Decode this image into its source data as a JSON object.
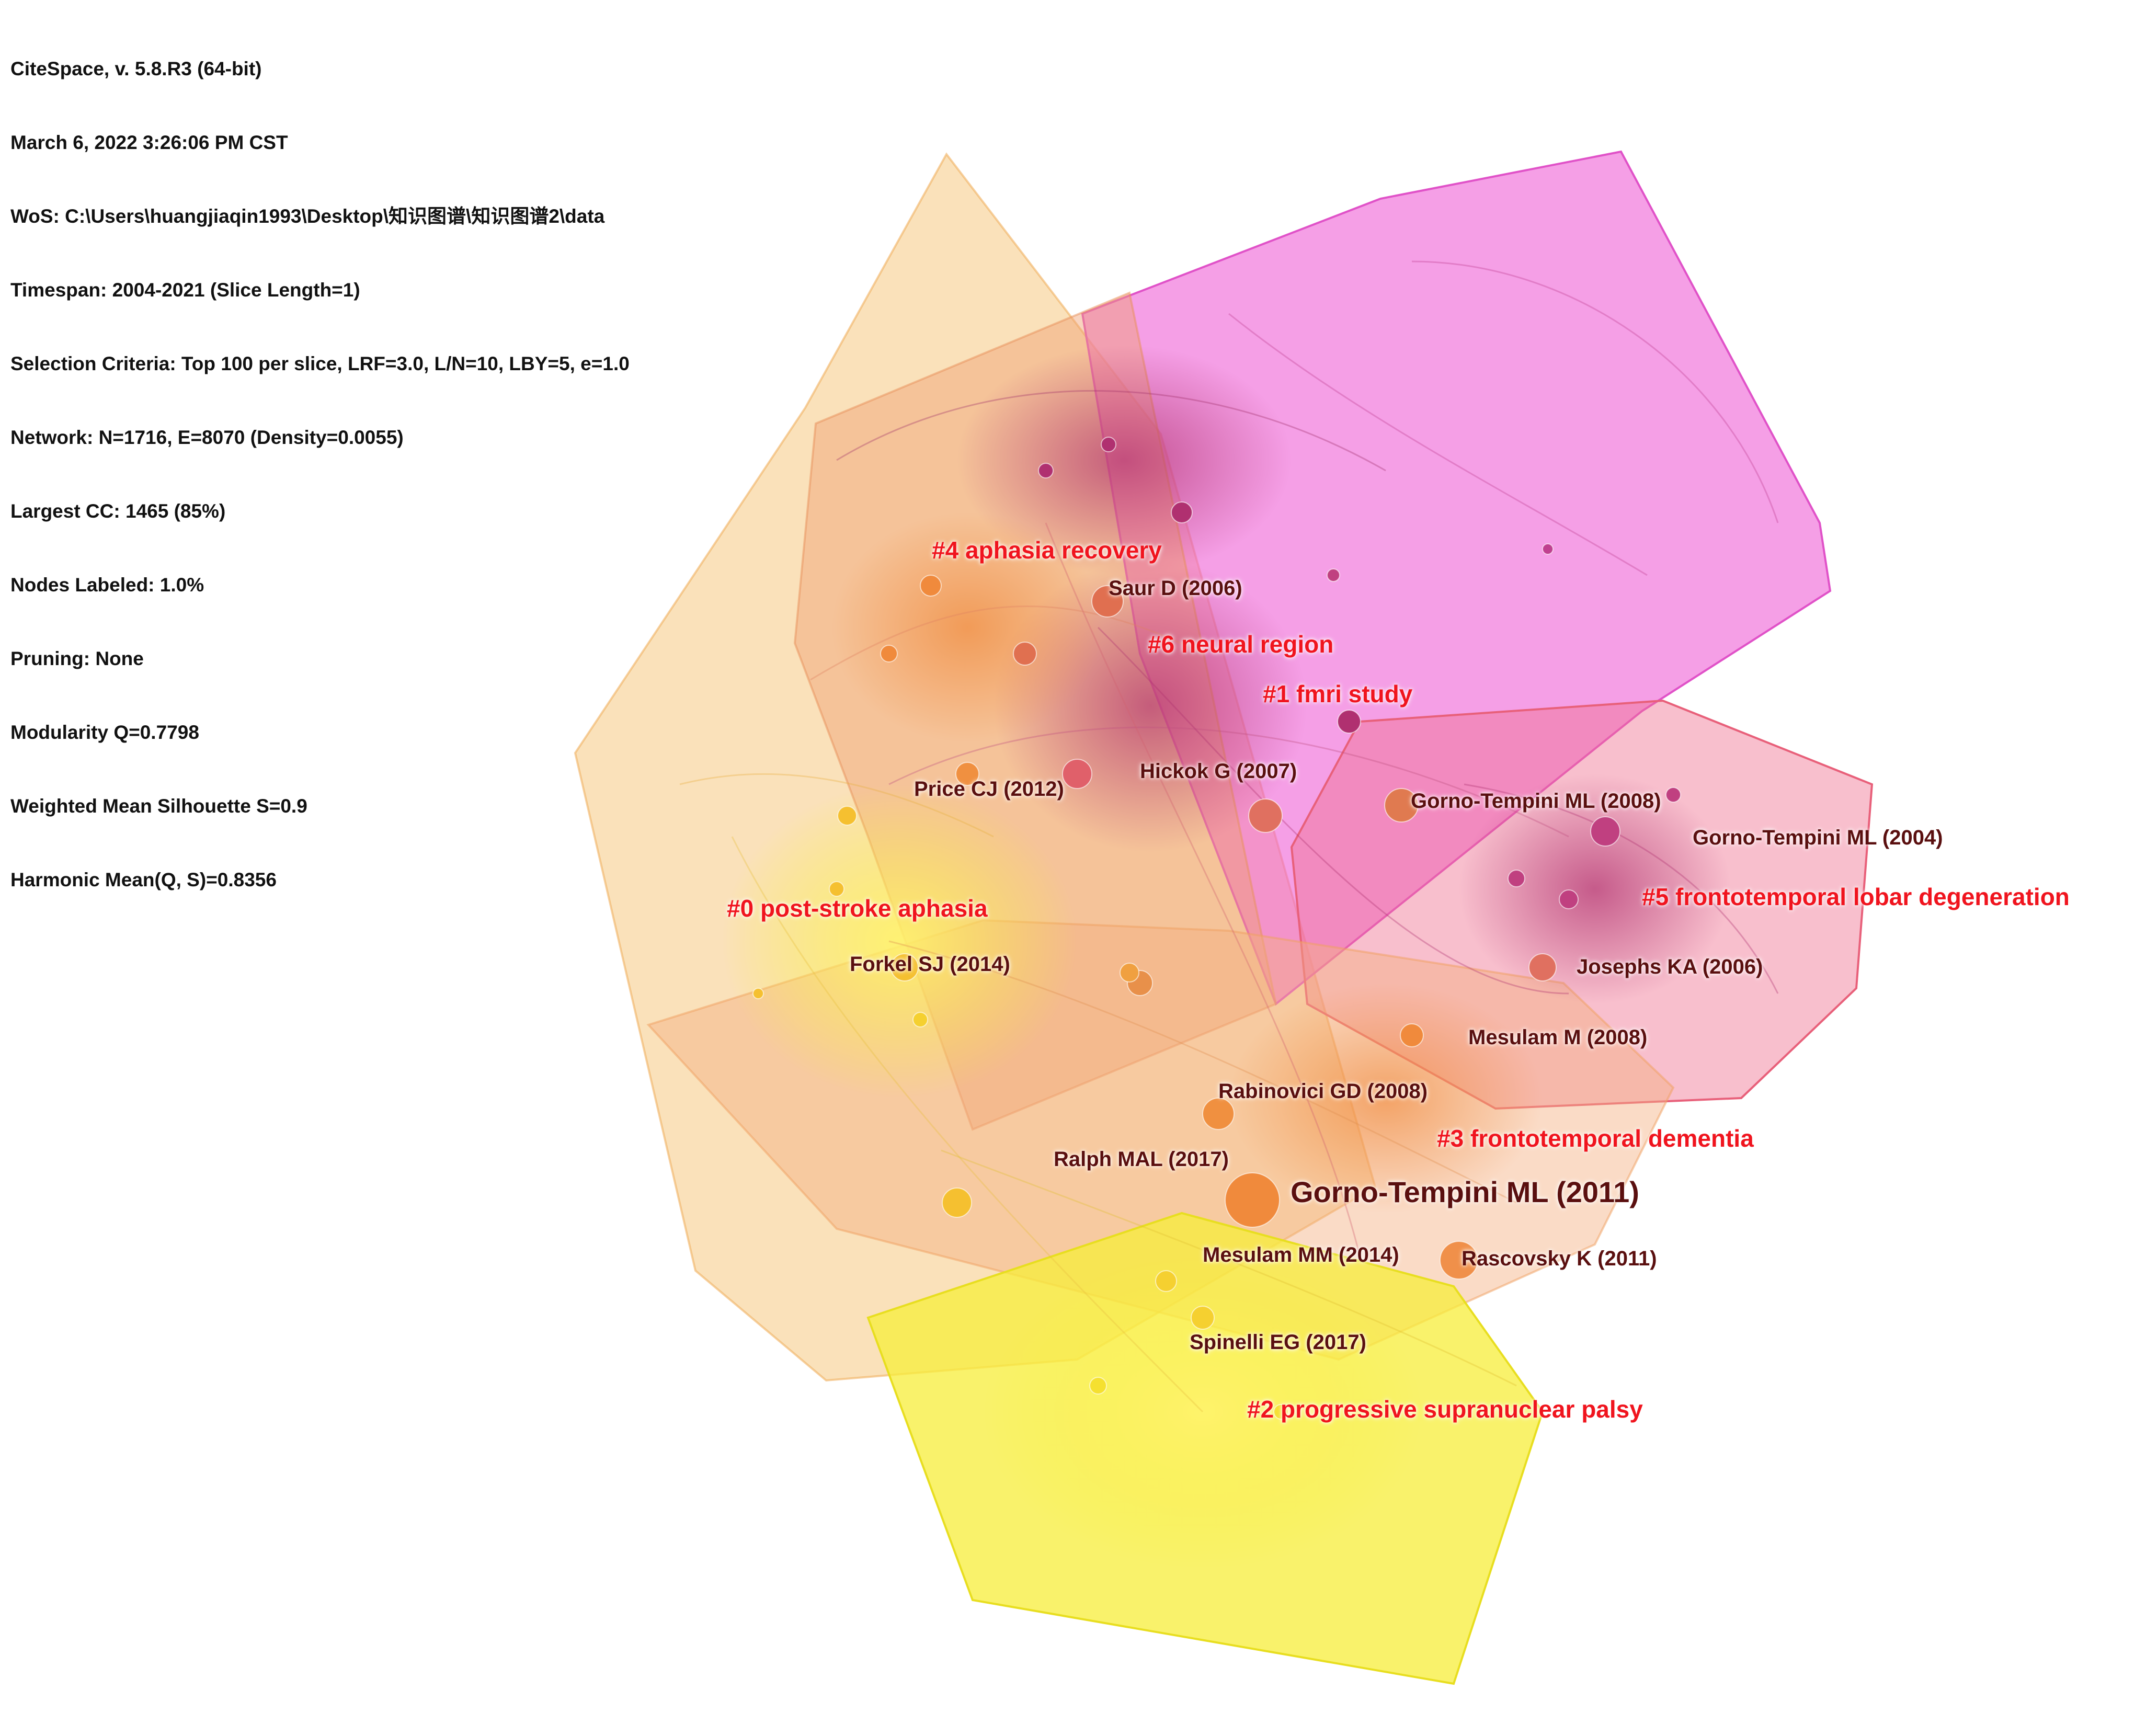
{
  "info": [
    "CiteSpace, v. 5.8.R3 (64-bit)",
    "March 6, 2022 3:26:06 PM CST",
    "WoS: C:\\Users\\huangjiaqin1993\\Desktop\\知识图谱\\知识图谱2\\data",
    "Timespan: 2004-2021 (Slice Length=1)",
    "Selection Criteria: Top 100 per slice, LRF=3.0, L/N=10, LBY=5, e=1.0",
    "Network: N=1716, E=8070 (Density=0.0055)",
    "Largest CC: 1465 (85%)",
    "Nodes Labeled: 1.0%",
    "Pruning: None",
    "Modularity Q=0.7798",
    "Weighted Mean Silhouette S=0.9",
    "Harmonic Mean(Q, S)=0.8356"
  ],
  "colors": {
    "cluster_label": "#f0141e",
    "node_label": "#5a0f0f",
    "magenta": "#ee5fd6",
    "pink": "#f06a9a",
    "orange": "#f2a350",
    "yellow": "#f7ee3a"
  },
  "clusters": [
    {
      "id": "c0",
      "label": "#0 post-stroke aphasia",
      "color": "#f5b95a"
    },
    {
      "id": "c1",
      "label": "#1 fmri study",
      "color": "#d2448f"
    },
    {
      "id": "c2",
      "label": "#2 progressive supranuclear palsy",
      "color": "#f7ee3a"
    },
    {
      "id": "c3",
      "label": "#3 frontotemporal dementia",
      "color": "#f3a068"
    },
    {
      "id": "c4",
      "label": "#4 aphasia recovery",
      "color": "#ee8d6c"
    },
    {
      "id": "c5",
      "label": "#5 frontotemporal lobar degeneration",
      "color": "#f07090"
    },
    {
      "id": "c6",
      "label": "#6 neural region",
      "color": "#ee5fd6"
    }
  ],
  "nodes": [
    "Saur D (2006)",
    "Hickok G (2007)",
    "Price CJ (2012)",
    "Gorno-Tempini ML (2008)",
    "Gorno-Tempini ML (2004)",
    "Forkel SJ (2014)",
    "Josephs KA (2006)",
    "Mesulam M (2008)",
    "Rabinovici GD (2008)",
    "Ralph MAL (2017)",
    "Gorno-Tempini ML (2011)",
    "Mesulam MM (2014)",
    "Rascovsky K (2011)",
    "Spinelli EG (2017)"
  ]
}
